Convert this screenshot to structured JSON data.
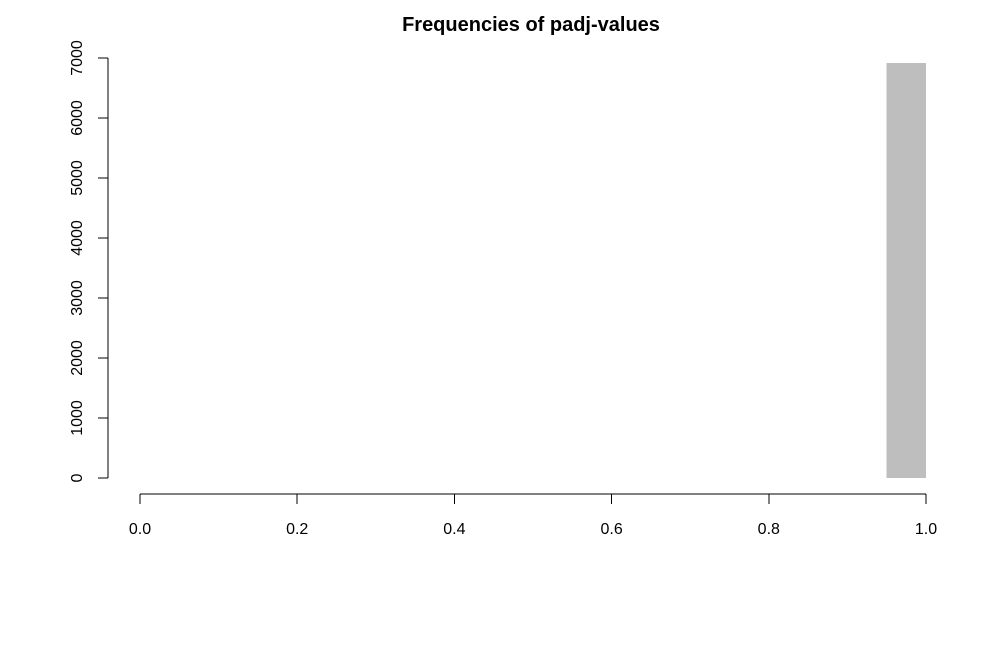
{
  "chart_data": {
    "type": "bar",
    "title": "Frequencies of padj-values",
    "xlabel": "",
    "ylabel": "",
    "xlim": [
      0.0,
      1.0
    ],
    "ylim": [
      0,
      7000
    ],
    "x_ticks": [
      "0.0",
      "0.2",
      "0.4",
      "0.6",
      "0.8",
      "1.0"
    ],
    "y_ticks": [
      "0",
      "1000",
      "2000",
      "3000",
      "4000",
      "5000",
      "6000",
      "7000"
    ],
    "bins": [
      {
        "x0": 0.95,
        "x1": 1.0,
        "value": 6920
      }
    ],
    "bar_color": "#bebebe",
    "grid": false,
    "legend": "none"
  }
}
